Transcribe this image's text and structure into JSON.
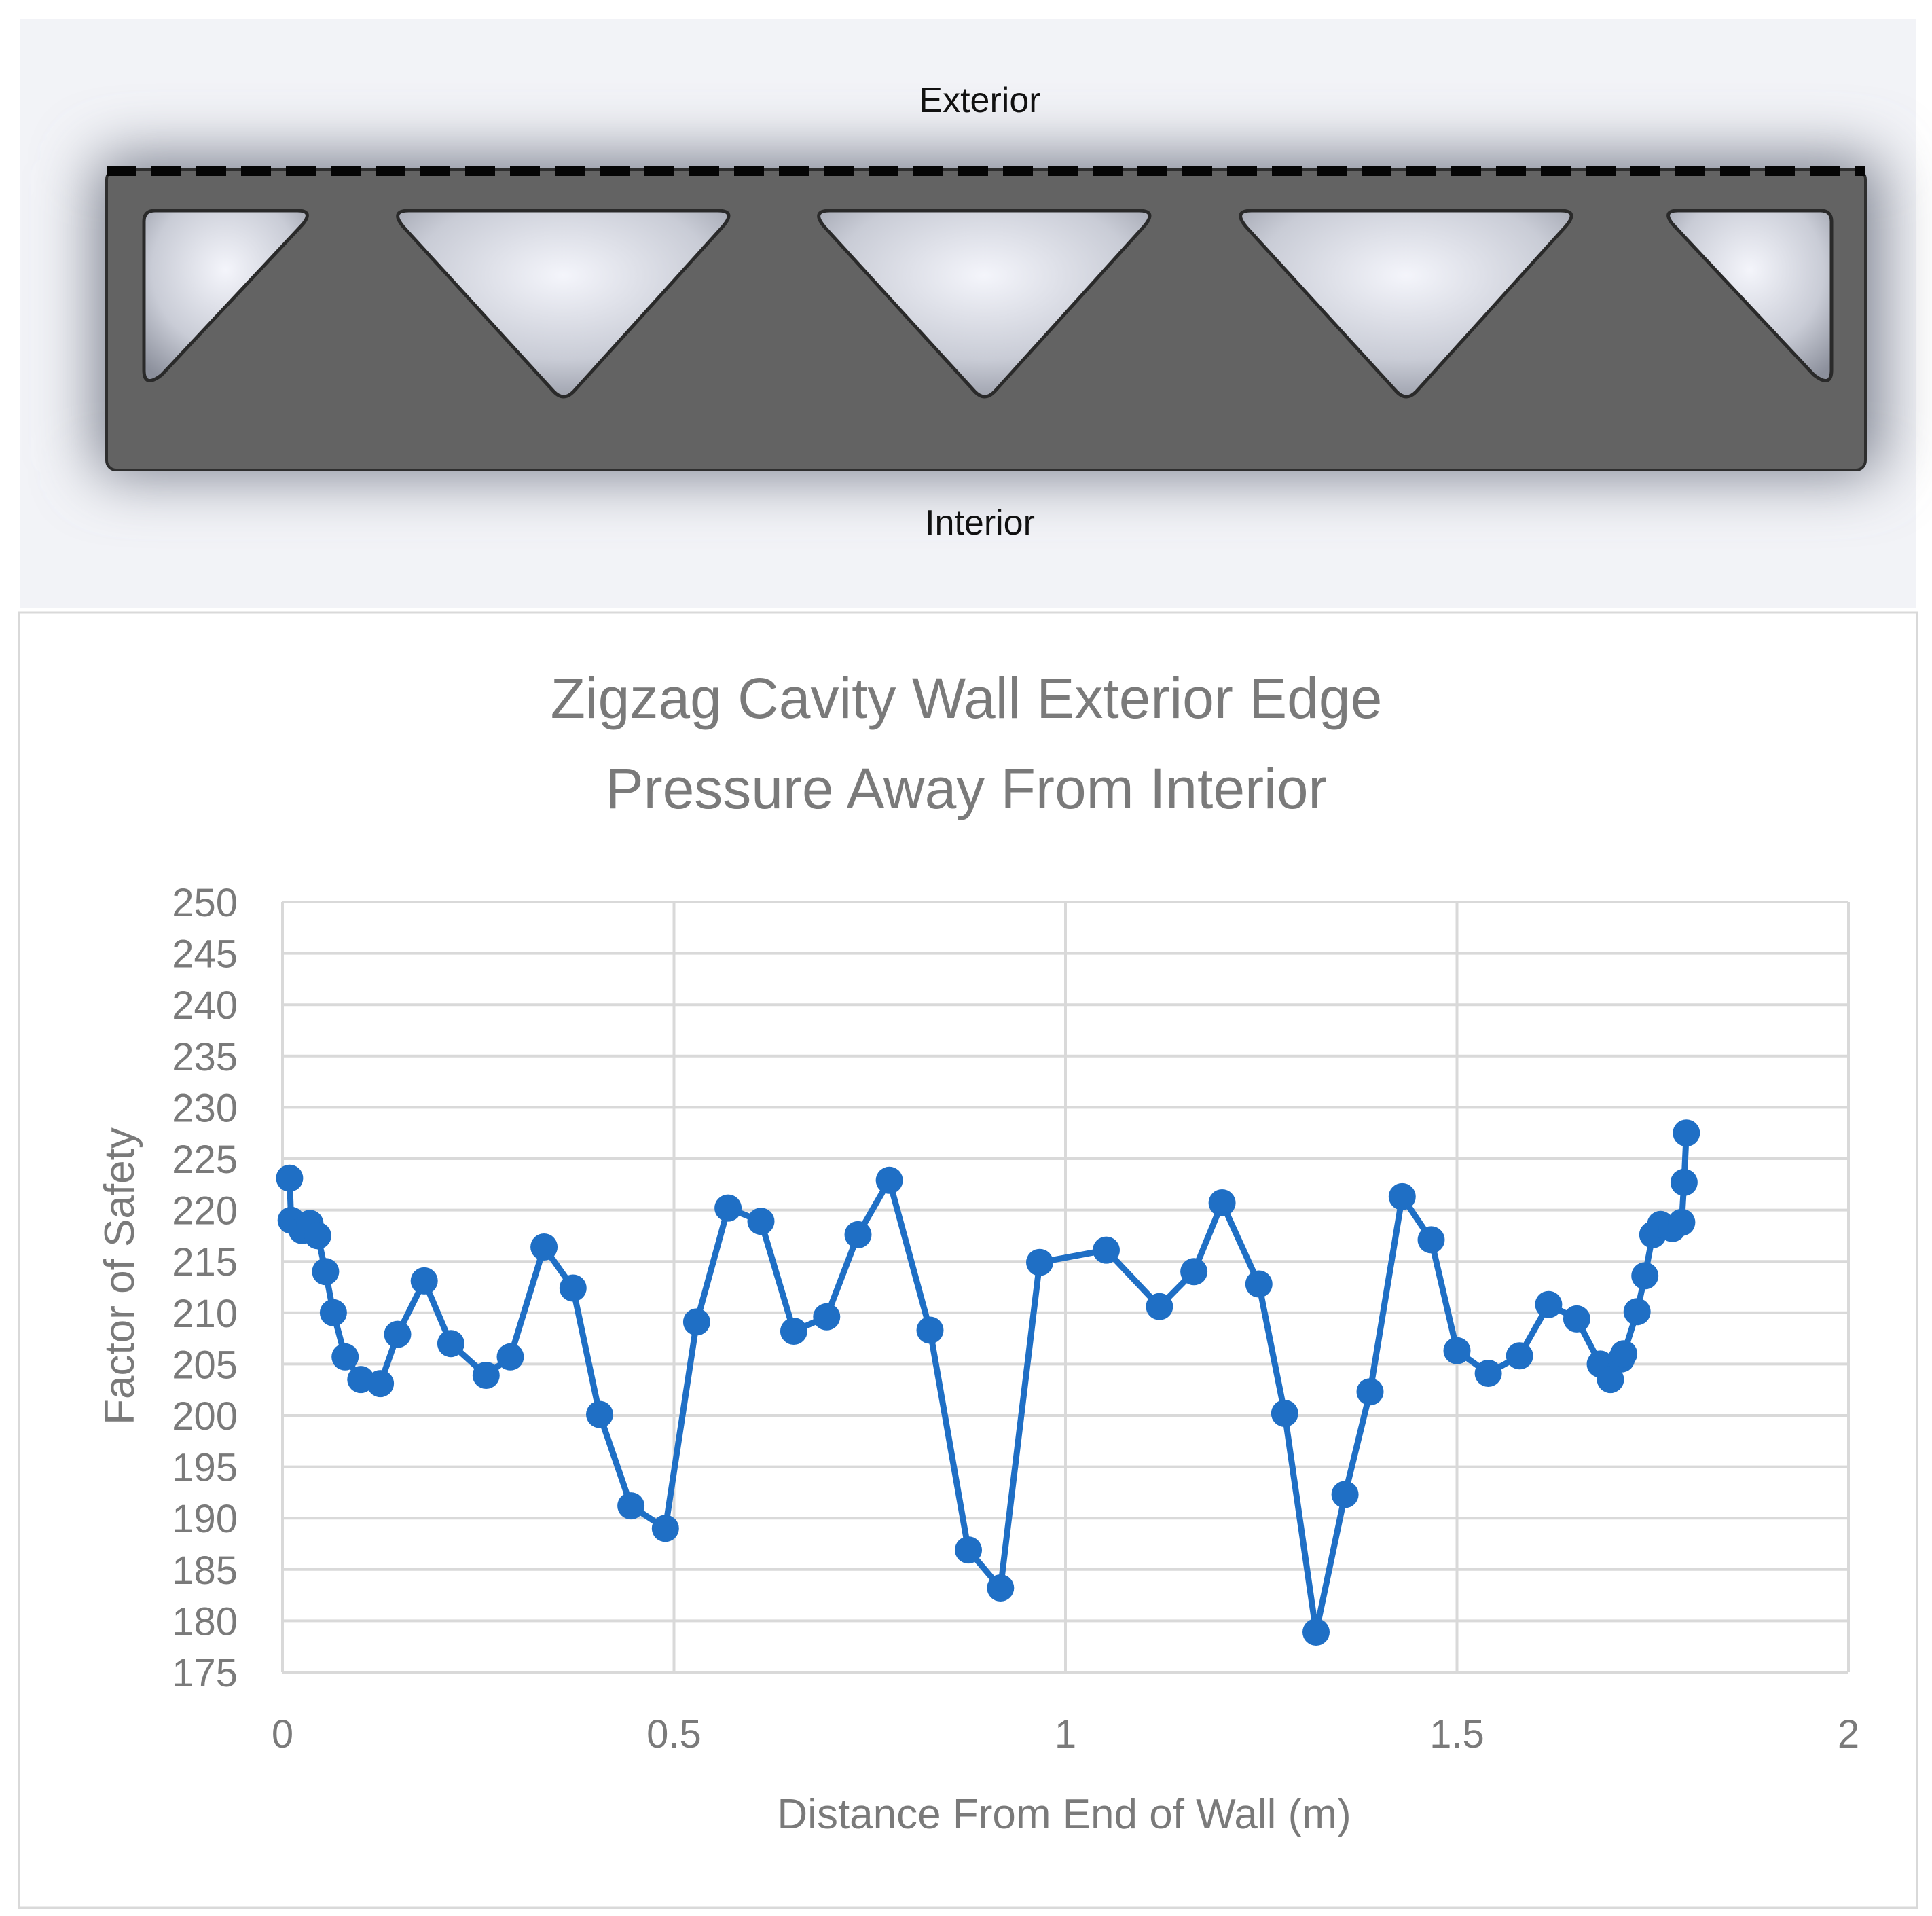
{
  "diagram": {
    "top_label": "Exterior",
    "bottom_label": "Interior",
    "colors": {
      "wall": "#636363",
      "edge": "#1a1a1a",
      "background": "#e6e9f2"
    }
  },
  "chart_data": {
    "type": "line",
    "title_line1": "Zigzag Cavity Wall Exterior Edge",
    "title_line2": "Pressure Away From Interior",
    "xlabel": "Distance From End of Wall (m)",
    "ylabel": "Factor of Safety",
    "xlim": [
      0,
      2
    ],
    "ylim": [
      175,
      250
    ],
    "xticks": [
      "0",
      "0.5",
      "1",
      "1.5",
      "2"
    ],
    "yticks": [
      "175",
      "180",
      "185",
      "190",
      "195",
      "200",
      "205",
      "210",
      "215",
      "220",
      "225",
      "230",
      "235",
      "240",
      "245",
      "250"
    ],
    "grid": true,
    "marker": "circle",
    "color": "#1f6fc5",
    "series": [
      {
        "x": [
          0.009,
          0.011,
          0.025,
          0.035,
          0.045,
          0.055,
          0.065,
          0.08,
          0.1,
          0.125,
          0.147,
          0.181,
          0.215,
          0.26,
          0.291,
          0.334,
          0.371,
          0.405,
          0.445,
          0.489,
          0.529,
          0.569,
          0.611,
          0.653,
          0.695,
          0.735,
          0.775,
          0.827,
          0.876,
          0.917,
          0.967,
          1.052,
          1.12,
          1.164,
          1.2,
          1.247,
          1.28,
          1.32,
          1.357,
          1.389,
          1.43,
          1.467,
          1.5,
          1.54,
          1.58,
          1.617,
          1.653,
          1.683,
          1.696,
          1.71,
          1.713,
          1.73,
          1.74,
          1.75,
          1.76,
          1.775,
          1.787,
          1.79,
          1.793
        ],
        "y": [
          223.1,
          219,
          218,
          218.7,
          217.5,
          214,
          210,
          205.7,
          203.5,
          203.1,
          207.9,
          213.1,
          207,
          203.9,
          205.7,
          216.4,
          212.4,
          200.1,
          191.2,
          189,
          209.1,
          220.2,
          218.9,
          208.2,
          209.6,
          217.6,
          222.9,
          208.3,
          186.9,
          183.2,
          214.9,
          216.1,
          210.6,
          214,
          220.7,
          212.8,
          200.2,
          178.9,
          192.3,
          202.3,
          221.3,
          217.1,
          206.3,
          204.1,
          205.8,
          210.8,
          209.4,
          205,
          203.5,
          205.5,
          206,
          210.1,
          213.6,
          217.6,
          218.6,
          218.2,
          218.8,
          222.7,
          227.5
        ]
      }
    ]
  }
}
